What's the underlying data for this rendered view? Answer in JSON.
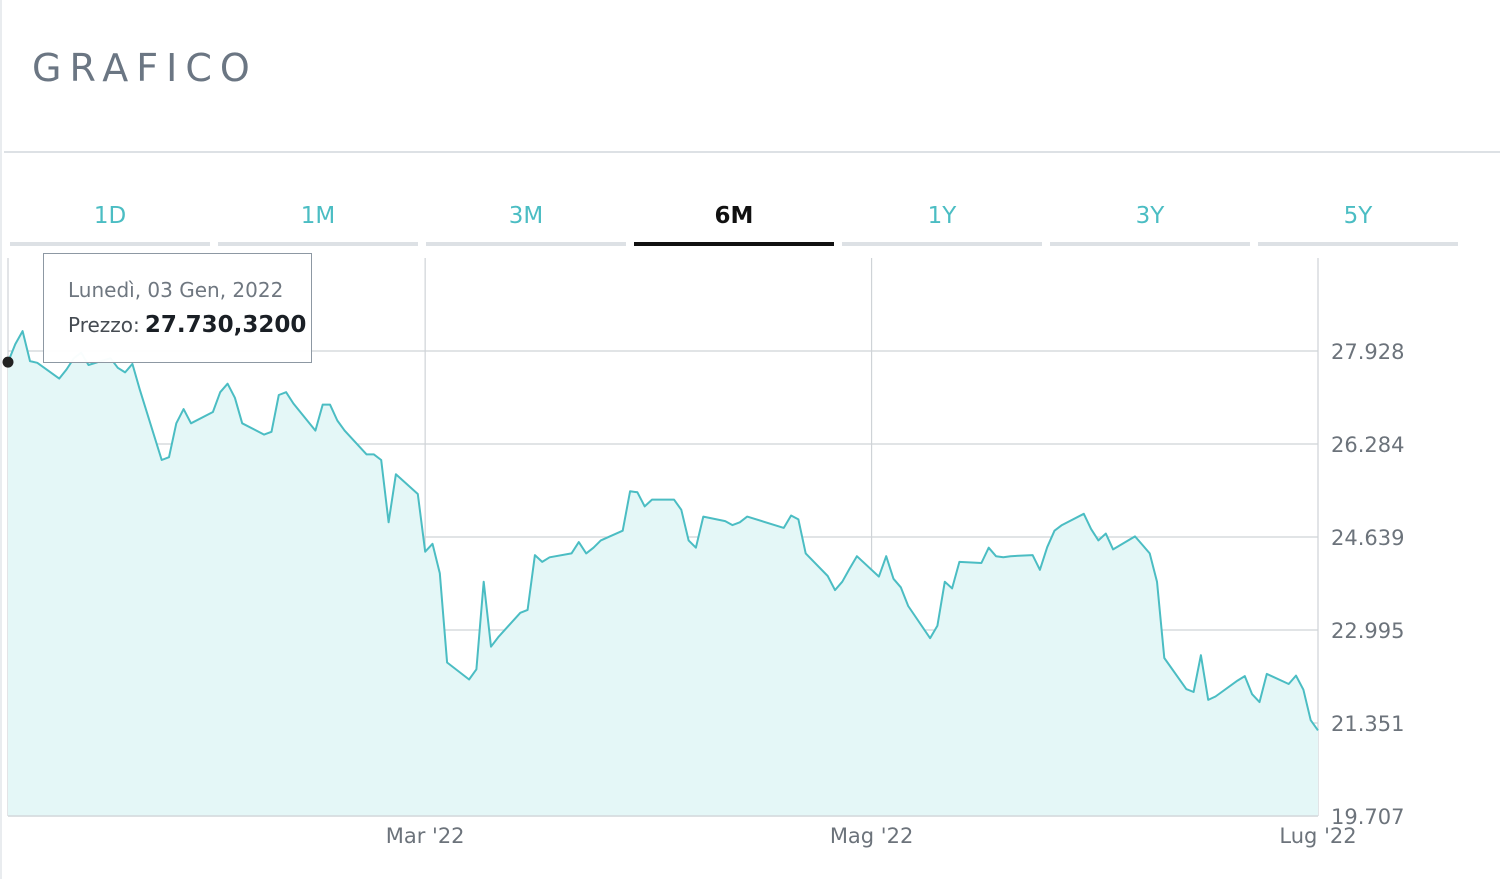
{
  "header": {
    "title": "GRAFICO"
  },
  "tabs": [
    {
      "label": "1D",
      "active": false
    },
    {
      "label": "1M",
      "active": false
    },
    {
      "label": "3M",
      "active": false
    },
    {
      "label": "6M",
      "active": true
    },
    {
      "label": "1Y",
      "active": false
    },
    {
      "label": "3Y",
      "active": false
    },
    {
      "label": "5Y",
      "active": false
    }
  ],
  "tooltip": {
    "date": "Lunedì, 03 Gen, 2022",
    "price_label": "Prezzo:",
    "price_value": "27.730,3200"
  },
  "colors": {
    "line": "#4bbdc3",
    "fill": "#e4f7f7",
    "grid": "#cfd3d7",
    "accent": "#4bbdc3",
    "active_tab": "#111111",
    "marker": "#222222"
  },
  "chart_data": {
    "type": "area",
    "title": "",
    "xlabel": "",
    "ylabel": "",
    "ylim": [
      19707,
      29572
    ],
    "yticks": [
      27928,
      26284,
      24639,
      22995,
      21351,
      19707
    ],
    "ytick_labels": [
      "27.928",
      "26.284",
      "24.639",
      "22.995",
      "21.351",
      "19.707"
    ],
    "xticks": [
      {
        "label": "Mar '22",
        "x": "2022-03-01"
      },
      {
        "label": "Mag '22",
        "x": "2022-05-01"
      },
      {
        "label": "Lug '22",
        "x": "2022-07-01"
      }
    ],
    "x_start": "2022-01-03",
    "x_end": "2022-07-01",
    "grid": true,
    "highlighted_point": {
      "x": "2022-01-03",
      "y": 27730.32
    },
    "series": [
      {
        "x": [
          "2022-01-03",
          "2022-01-04",
          "2022-01-05",
          "2022-01-06",
          "2022-01-07",
          "2022-01-10",
          "2022-01-11",
          "2022-01-12",
          "2022-01-13",
          "2022-01-14",
          "2022-01-17",
          "2022-01-18",
          "2022-01-19",
          "2022-01-20",
          "2022-01-21",
          "2022-01-24",
          "2022-01-25",
          "2022-01-26",
          "2022-01-27",
          "2022-01-28",
          "2022-01-31",
          "2022-02-01",
          "2022-02-02",
          "2022-02-03",
          "2022-02-04",
          "2022-02-07",
          "2022-02-08",
          "2022-02-09",
          "2022-02-10",
          "2022-02-11",
          "2022-02-14",
          "2022-02-15",
          "2022-02-16",
          "2022-02-17",
          "2022-02-18",
          "2022-02-21",
          "2022-02-22",
          "2022-02-23",
          "2022-02-24",
          "2022-02-25",
          "2022-02-28",
          "2022-03-01",
          "2022-03-02",
          "2022-03-03",
          "2022-03-04",
          "2022-03-07",
          "2022-03-08",
          "2022-03-09",
          "2022-03-10",
          "2022-03-11",
          "2022-03-14",
          "2022-03-15",
          "2022-03-16",
          "2022-03-17",
          "2022-03-18",
          "2022-03-21",
          "2022-03-22",
          "2022-03-23",
          "2022-03-24",
          "2022-03-25",
          "2022-03-28",
          "2022-03-29",
          "2022-03-30",
          "2022-03-31",
          "2022-04-01",
          "2022-04-04",
          "2022-04-05",
          "2022-04-06",
          "2022-04-07",
          "2022-04-08",
          "2022-04-11",
          "2022-04-12",
          "2022-04-13",
          "2022-04-14",
          "2022-04-19",
          "2022-04-20",
          "2022-04-21",
          "2022-04-22",
          "2022-04-25",
          "2022-04-26",
          "2022-04-27",
          "2022-04-28",
          "2022-04-29",
          "2022-05-02",
          "2022-05-03",
          "2022-05-04",
          "2022-05-05",
          "2022-05-06",
          "2022-05-09",
          "2022-05-10",
          "2022-05-11",
          "2022-05-12",
          "2022-05-13",
          "2022-05-16",
          "2022-05-17",
          "2022-05-18",
          "2022-05-19",
          "2022-05-20",
          "2022-05-23",
          "2022-05-24",
          "2022-05-25",
          "2022-05-26",
          "2022-05-27",
          "2022-05-30",
          "2022-05-31",
          "2022-06-01",
          "2022-06-02",
          "2022-06-03",
          "2022-06-06",
          "2022-06-07",
          "2022-06-08",
          "2022-06-09",
          "2022-06-10",
          "2022-06-13",
          "2022-06-14",
          "2022-06-15",
          "2022-06-16",
          "2022-06-17",
          "2022-06-20",
          "2022-06-21",
          "2022-06-22",
          "2022-06-23",
          "2022-06-24",
          "2022-06-27",
          "2022-06-28",
          "2022-06-29",
          "2022-06-30",
          "2022-07-01"
        ],
        "values": [
          27730,
          28050,
          28280,
          27750,
          27720,
          27440,
          27600,
          27800,
          27900,
          27680,
          27800,
          27630,
          27550,
          27700,
          27250,
          26000,
          26050,
          26650,
          26900,
          26650,
          26850,
          27200,
          27350,
          27100,
          26650,
          26450,
          26500,
          27150,
          27200,
          27000,
          26520,
          26980,
          26980,
          26700,
          26520,
          26100,
          26100,
          26000,
          24900,
          25750,
          25400,
          24380,
          24520,
          24000,
          22420,
          22120,
          22300,
          23850,
          22700,
          22870,
          23300,
          23350,
          24320,
          24200,
          24280,
          24350,
          24550,
          24350,
          24450,
          24580,
          24750,
          25450,
          25430,
          25180,
          25300,
          25300,
          25120,
          24580,
          24450,
          25000,
          24920,
          24850,
          24900,
          25000,
          24800,
          25020,
          24950,
          24350,
          23950,
          23700,
          23850,
          24080,
          24300,
          23940,
          24300,
          23900,
          23750,
          23420,
          22850,
          23070,
          23850,
          23730,
          24200,
          24180,
          24450,
          24300,
          24280,
          24300,
          24320,
          24060,
          24460,
          24750,
          24850,
          25050,
          24780,
          24580,
          24700,
          24420,
          24650,
          24500,
          24350,
          23850,
          22500,
          21950,
          21900,
          22550,
          21760,
          21820,
          22100,
          22180,
          21860,
          21720,
          22220,
          22040,
          22190,
          21940,
          21400,
          21220
        ]
      }
    ]
  }
}
